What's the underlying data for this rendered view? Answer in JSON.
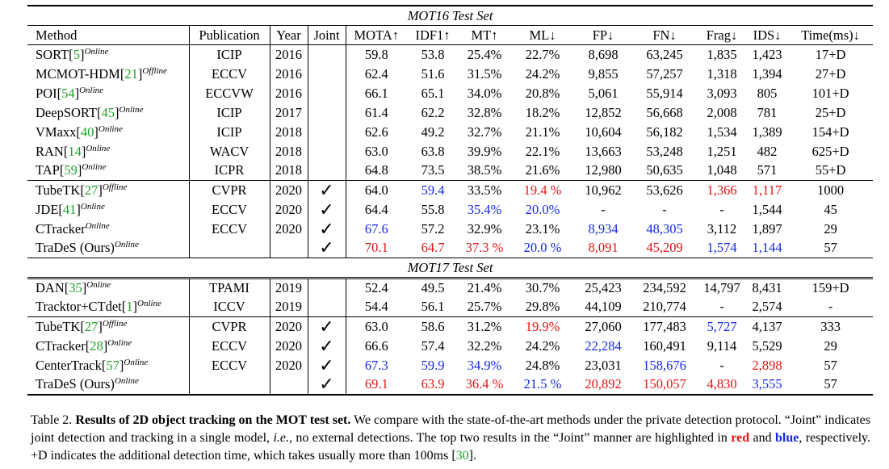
{
  "table": {
    "columns": [
      "Method",
      "Publication",
      "Year",
      "Joint",
      "MOTA↑",
      "IDF1↑",
      "MT↑",
      "ML↓",
      "FP↓",
      "FN↓",
      "Frag↓",
      "IDS↓",
      "Time(ms)↓"
    ],
    "sections": [
      {
        "title": "MOT16 Test Set",
        "groups": [
          [
            {
              "name": "SORT[",
              "ref": "5",
              "tag": "Online",
              "pub": "ICIP",
              "year": "2016",
              "joint": false,
              "vals": [
                "59.8",
                "53.8",
                "25.4%",
                "22.7%",
                "8,698",
                "63,245",
                "1,835",
                "1,423",
                "17+D"
              ],
              "hl": [
                "",
                "",
                "",
                "",
                "",
                "",
                "",
                "",
                ""
              ]
            },
            {
              "name": "MCMOT-HDM[",
              "ref": "21",
              "tag": "Offline",
              "pub": "ECCV",
              "year": "2016",
              "joint": false,
              "vals": [
                "62.4",
                "51.6",
                "31.5%",
                "24.2%",
                "9,855",
                "57,257",
                "1,318",
                "1,394",
                "27+D"
              ],
              "hl": [
                "",
                "",
                "",
                "",
                "",
                "",
                "",
                "",
                ""
              ]
            },
            {
              "name": "POI[",
              "ref": "54",
              "tag": "Online",
              "pub": "ECCVW",
              "year": "2016",
              "joint": false,
              "vals": [
                "66.1",
                "65.1",
                "34.0%",
                "20.8%",
                "5,061",
                "55,914",
                "3,093",
                "805",
                "101+D"
              ],
              "hl": [
                "",
                "",
                "",
                "",
                "",
                "",
                "",
                "",
                ""
              ]
            },
            {
              "name": "DeepSORT[",
              "ref": "45",
              "tag": "Online",
              "pub": "ICIP",
              "year": "2017",
              "joint": false,
              "vals": [
                "61.4",
                "62.2",
                "32.8%",
                "18.2%",
                "12,852",
                "56,668",
                "2,008",
                "781",
                "25+D"
              ],
              "hl": [
                "",
                "",
                "",
                "",
                "",
                "",
                "",
                "",
                ""
              ]
            },
            {
              "name": "VMaxx[",
              "ref": "40",
              "tag": "Online",
              "pub": "ICIP",
              "year": "2018",
              "joint": false,
              "vals": [
                "62.6",
                "49.2",
                "32.7%",
                "21.1%",
                "10,604",
                "56,182",
                "1,534",
                "1,389",
                "154+D"
              ],
              "hl": [
                "",
                "",
                "",
                "",
                "",
                "",
                "",
                "",
                ""
              ]
            },
            {
              "name": "RAN[",
              "ref": "14",
              "tag": "Online",
              "pub": "WACV",
              "year": "2018",
              "joint": false,
              "vals": [
                "63.0",
                "63.8",
                "39.9%",
                "22.1%",
                "13,663",
                "53,248",
                "1,251",
                "482",
                "625+D"
              ],
              "hl": [
                "",
                "",
                "",
                "",
                "",
                "",
                "",
                "",
                ""
              ]
            },
            {
              "name": "TAP[",
              "ref": "59",
              "tag": "Online",
              "pub": "ICPR",
              "year": "2018",
              "joint": false,
              "vals": [
                "64.8",
                "73.5",
                "38.5%",
                "21.6%",
                "12,980",
                "50,635",
                "1,048",
                "571",
                "55+D"
              ],
              "hl": [
                "",
                "",
                "",
                "",
                "",
                "",
                "",
                "",
                ""
              ]
            }
          ],
          [
            {
              "name": "TubeTK[",
              "ref": "27",
              "tag": "Offline",
              "pub": "CVPR",
              "year": "2020",
              "joint": true,
              "vals": [
                "64.0",
                "59.4",
                "33.5%",
                "19.4 %",
                "10,962",
                "53,626",
                "1,366",
                "1,117",
                "1000"
              ],
              "hl": [
                "",
                "blue",
                "",
                "red",
                "",
                "",
                "red",
                "red",
                ""
              ]
            },
            {
              "name": "JDE[",
              "ref": "41",
              "tag": "Online",
              "pub": "ECCV",
              "year": "2020",
              "joint": true,
              "vals": [
                "64.4",
                "55.8",
                "35.4%",
                "20.0%",
                "-",
                "-",
                "-",
                "1,544",
                "45"
              ],
              "hl": [
                "",
                "",
                "blue",
                "blue",
                "",
                "",
                "",
                "",
                ""
              ]
            },
            {
              "name": "CTracker",
              "ref": "",
              "tag": "Online",
              "pub": "ECCV",
              "year": "2020",
              "joint": true,
              "vals": [
                "67.6",
                "57.2",
                "32.9%",
                "23.1%",
                "8,934",
                "48,305",
                "3,112",
                "1,897",
                "29"
              ],
              "hl": [
                "blue",
                "",
                "",
                "",
                "blue",
                "blue",
                "",
                "",
                ""
              ]
            },
            {
              "name": "TraDeS (Ours)",
              "ref": "",
              "tag": "Online",
              "pub": "",
              "year": "",
              "joint": true,
              "vals": [
                "70.1",
                "64.7",
                "37.3 %",
                "20.0 %",
                "8,091",
                "45,209",
                "1,574",
                "1,144",
                "57"
              ],
              "hl": [
                "red",
                "red",
                "red",
                "blue",
                "red",
                "red",
                "blue",
                "blue",
                ""
              ]
            }
          ]
        ]
      },
      {
        "title": "MOT17 Test Set",
        "groups": [
          [
            {
              "name": "DAN[",
              "ref": "35",
              "tag": "Online",
              "pub": "TPAMI",
              "year": "2019",
              "joint": false,
              "vals": [
                "52.4",
                "49.5",
                "21.4%",
                "30.7%",
                "25,423",
                "234,592",
                "14,797",
                "8,431",
                "159+D"
              ],
              "hl": [
                "",
                "",
                "",
                "",
                "",
                "",
                "",
                "",
                ""
              ]
            },
            {
              "name": "Tracktor+CTdet[",
              "ref": "1",
              "tag": "Online",
              "pub": "ICCV",
              "year": "2019",
              "joint": false,
              "vals": [
                "54.4",
                "56.1",
                "25.7%",
                "29.8%",
                "44,109",
                "210,774",
                "-",
                "2,574",
                "-"
              ],
              "hl": [
                "",
                "",
                "",
                "",
                "",
                "",
                "",
                "",
                ""
              ]
            }
          ],
          [
            {
              "name": "TubeTK[",
              "ref": "27",
              "tag": "Offline",
              "pub": "CVPR",
              "year": "2020",
              "joint": true,
              "vals": [
                "63.0",
                "58.6",
                "31.2%",
                "19.9%",
                "27,060",
                "177,483",
                "5,727",
                "4,137",
                "333"
              ],
              "hl": [
                "",
                "",
                "",
                "red",
                "",
                "",
                "blue",
                "",
                ""
              ]
            },
            {
              "name": "CTracker[",
              "ref": "28",
              "tag": "Online",
              "pub": "ECCV",
              "year": "2020",
              "joint": true,
              "vals": [
                "66.6",
                "57.4",
                "32.2%",
                "24.2%",
                "22,284",
                "160,491",
                "9,114",
                "5,529",
                "29"
              ],
              "hl": [
                "",
                "",
                "",
                "",
                "blue",
                "",
                "",
                "",
                ""
              ]
            },
            {
              "name": "CenterTrack[",
              "ref": "57",
              "tag": "Online",
              "pub": "ECCV",
              "year": "2020",
              "joint": true,
              "vals": [
                "67.3",
                "59.9",
                "34.9%",
                "24.8%",
                "23,031",
                "158,676",
                "-",
                "2,898",
                "57"
              ],
              "hl": [
                "blue",
                "blue",
                "blue",
                "",
                "",
                "blue",
                "",
                "red",
                ""
              ]
            },
            {
              "name": "TraDeS (Ours)",
              "ref": "",
              "tag": "Online",
              "pub": "",
              "year": "",
              "joint": true,
              "vals": [
                "69.1",
                "63.9",
                "36.4 %",
                "21.5 %",
                "20,892",
                "150,057",
                "4,830",
                "3,555",
                "57"
              ],
              "hl": [
                "red",
                "red",
                "red",
                "blue",
                "red",
                "red",
                "red",
                "blue",
                ""
              ]
            }
          ]
        ]
      }
    ],
    "check_symbol": "✓",
    "colors": {
      "red": "#e41414",
      "blue": "#1428e4",
      "ref_green": "#22a02a"
    }
  },
  "caption": {
    "label": "Table 2. ",
    "title": "Results of 2D object tracking on the MOT test set.",
    "t1": " We compare with the state-of-the-art methods under the private detection protocol. “Joint” indicates joint detection and tracking in a single model, ",
    "ie": "i.e.,",
    "t2": " no external detections. The top two results in the “Joint” manner are highlighted in ",
    "red": "red",
    "t3": " and ",
    "blue": "blue",
    "t4": ", respectively. +D indicates the additional detection time, which takes usually more than 100ms [",
    "ref": "30",
    "t5": "]."
  }
}
